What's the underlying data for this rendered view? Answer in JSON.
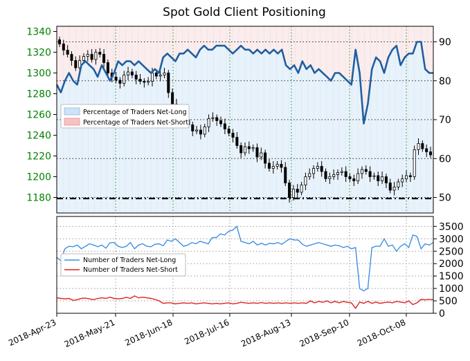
{
  "chart_data": [
    {
      "type": "candlestick+line",
      "title": "Spot Gold Client Positioning",
      "x_tick_labels": [
        "2018-Apr-23",
        "2018-May-21",
        "2018-Jun-18",
        "2018-Jul-16",
        "2018-Aug-13",
        "2018-Sep-10",
        "2018-Oct-08"
      ],
      "left_axis": {
        "ticks": [
          1180,
          1200,
          1220,
          1240,
          1260,
          1280,
          1300,
          1320,
          1340
        ],
        "range": [
          1165,
          1345
        ],
        "tick_color": "#008000"
      },
      "right_axis": {
        "ticks": [
          50,
          60,
          70,
          80,
          90
        ],
        "range": [
          46,
          94
        ]
      },
      "reference_line_left_axis": 1179,
      "legend": {
        "placement": "center-left",
        "entries": [
          "Percentage of Traders Net-Long",
          "Percentage of Traders Net-Short"
        ]
      },
      "grid": true,
      "price_close": [
        1328,
        1322,
        1318,
        1312,
        1305,
        1312,
        1316,
        1318,
        1313,
        1320,
        1318,
        1310,
        1300,
        1296,
        1293,
        1290,
        1298,
        1301,
        1298,
        1294,
        1292,
        1291,
        1292,
        1300,
        1297,
        1298,
        1300,
        1281,
        1270,
        1266,
        1260,
        1255,
        1250,
        1244,
        1245,
        1241,
        1248,
        1256,
        1257,
        1254,
        1251,
        1246,
        1242,
        1238,
        1230,
        1223,
        1229,
        1227,
        1228,
        1219,
        1223,
        1213,
        1208,
        1210,
        1212,
        1209,
        1194,
        1180,
        1188,
        1185,
        1192,
        1200,
        1203,
        1208,
        1210,
        1205,
        1198,
        1200,
        1202,
        1204,
        1205,
        1200,
        1198,
        1196,
        1203,
        1207,
        1205,
        1200,
        1201,
        1196,
        1200,
        1194,
        1187,
        1190,
        1195,
        1198,
        1201,
        1200,
        1226,
        1232,
        1227,
        1224,
        1221
      ],
      "net_long_pct": [
        79,
        77,
        80,
        82,
        80,
        79,
        84,
        85,
        84,
        83,
        81,
        84,
        82,
        80,
        82,
        85,
        84,
        85,
        85,
        84,
        85,
        84,
        83,
        82,
        83,
        82,
        86,
        87,
        86,
        85,
        87,
        87,
        88,
        87,
        86,
        88,
        89,
        88,
        88,
        89,
        89,
        89,
        88,
        87,
        88,
        89,
        88,
        88,
        87,
        88,
        87,
        88,
        87,
        88,
        87,
        88,
        84,
        83,
        84,
        82,
        85,
        83,
        84,
        82,
        83,
        82,
        81,
        80,
        82,
        82,
        81,
        80,
        79,
        88,
        82,
        69,
        74,
        83,
        86,
        85,
        82,
        86,
        88,
        89,
        84,
        86,
        87,
        87,
        90,
        90,
        83,
        82,
        82
      ]
    },
    {
      "type": "line",
      "y_ticks": [
        0,
        500,
        1000,
        1500,
        2000,
        2500,
        3000,
        3500
      ],
      "ylim": [
        0,
        3900
      ],
      "x_tick_labels": [
        "2018-Apr-23",
        "2018-May-21",
        "2018-Jun-18",
        "2018-Jul-16",
        "2018-Aug-13",
        "2018-Sep-10",
        "2018-Oct-08"
      ],
      "legend": {
        "placement": "center-left",
        "entries": [
          "Number of Traders Net-Long",
          "Number of Traders Net-Short"
        ]
      },
      "series": [
        {
          "name": "Number of Traders Net-Long",
          "color": "#3d8fe6",
          "values": [
            2250,
            2120,
            2600,
            2700,
            2680,
            2750,
            2600,
            2700,
            2800,
            2750,
            2680,
            2750,
            2620,
            2840,
            2850,
            2700,
            2650,
            2700,
            2850,
            2600,
            2750,
            2800,
            2700,
            2680,
            2780,
            2800,
            2720,
            2950,
            2900,
            3000,
            2850,
            2700,
            2750,
            2850,
            2800,
            2900,
            2850,
            2800,
            3050,
            3050,
            3200,
            3150,
            3300,
            3350,
            3500,
            2900,
            2850,
            2800,
            2900,
            2750,
            2820,
            2750,
            2820,
            2800,
            2850,
            2780,
            2900,
            3000,
            2950,
            2950,
            2780,
            2700,
            2750,
            2800,
            2850,
            2800,
            2750,
            2700,
            2750,
            2720,
            2650,
            2700,
            2600,
            2650,
            1000,
            900,
            1000,
            2650,
            2700,
            2700,
            3000,
            2700,
            2750,
            2500,
            2700,
            2800,
            2650,
            3150,
            3100,
            2600,
            2800,
            2750,
            2850
          ]
        },
        {
          "name": "Number of Traders Net-Short",
          "color": "#e02020",
          "values": [
            620,
            600,
            580,
            600,
            520,
            550,
            600,
            610,
            580,
            550,
            600,
            620,
            600,
            650,
            600,
            580,
            600,
            640,
            600,
            700,
            620,
            650,
            620,
            600,
            560,
            500,
            400,
            420,
            420,
            380,
            400,
            420,
            400,
            420,
            380,
            400,
            420,
            400,
            380,
            400,
            380,
            400,
            420,
            380,
            400,
            440,
            420,
            400,
            420,
            400,
            430,
            400,
            420,
            400,
            420,
            400,
            420,
            400,
            420,
            400,
            420,
            400,
            500,
            420,
            480,
            440,
            500,
            420,
            480,
            420,
            480,
            440,
            420,
            200,
            450,
            400,
            480,
            400,
            450,
            400,
            430,
            450,
            420,
            480,
            450,
            420,
            500,
            350,
            420,
            560,
            540,
            560,
            550
          ]
        }
      ]
    }
  ]
}
